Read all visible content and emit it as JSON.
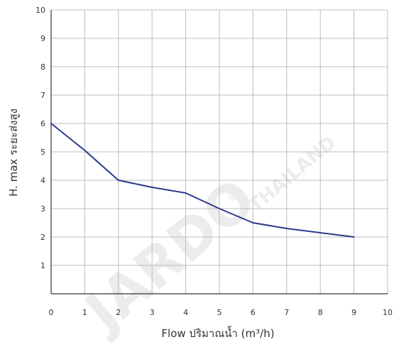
{
  "chart_data": {
    "type": "line",
    "title": "",
    "xlabel": "Flow  ปริมาณน้ำ (m³/h)",
    "ylabel": "H. max  ระยะส่งสูง",
    "xlim": [
      0,
      10
    ],
    "ylim": [
      0,
      10
    ],
    "x_ticks": [
      "0",
      "1",
      "2",
      "3",
      "4",
      "5",
      "6",
      "7",
      "8",
      "9",
      "10"
    ],
    "y_ticks": [
      "1",
      "2",
      "3",
      "4",
      "5",
      "6",
      "7",
      "8",
      "9",
      "10"
    ],
    "grid": true,
    "legend": "none",
    "series": [
      {
        "color": "#2b3a8c",
        "x": [
          0,
          1,
          2,
          3,
          4,
          5,
          6,
          7,
          8,
          9
        ],
        "y": [
          6,
          5.05,
          4.0,
          3.75,
          3.55,
          3.0,
          2.5,
          2.3,
          2.15,
          2.0
        ]
      }
    ]
  },
  "watermark": {
    "brand": "JARDO",
    "sub": "THAILAND",
    "reg": "®"
  }
}
